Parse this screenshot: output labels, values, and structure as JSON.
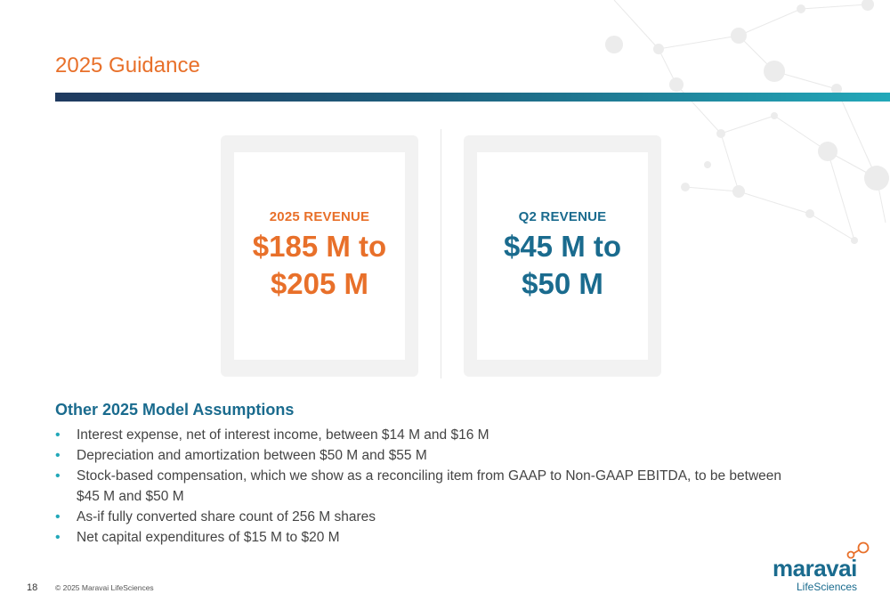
{
  "slide": {
    "title": "2025 Guidance",
    "page_number": "18",
    "copyright": "© 2025 Maravai LifeSciences"
  },
  "cards": [
    {
      "label": "2025 REVENUE",
      "value": "$185 M to $205 M",
      "color": "#e8702a"
    },
    {
      "label": "Q2 REVENUE",
      "value": "$45 M to $50 M",
      "color": "#1a6b8e"
    }
  ],
  "assumptions": {
    "heading": "Other 2025 Model Assumptions",
    "items": [
      "Interest expense, net of interest income, between $14 M and $16 M",
      "Depreciation and amortization between $50 M and $55 M",
      "Stock-based compensation, which we show as a reconciling item from GAAP to Non-GAAP EBITDA, to be between $45 M and $50 M",
      "As-if fully converted share count of 256 M shares",
      "Net capital expenditures of $15 M to $20 M"
    ]
  },
  "logo": {
    "wordmark": "maravai",
    "subtitle": "LifeSciences"
  },
  "colors": {
    "accent_orange": "#e8702a",
    "accent_teal": "#1a6b8e",
    "bullet_cyan": "#22a8b9"
  }
}
